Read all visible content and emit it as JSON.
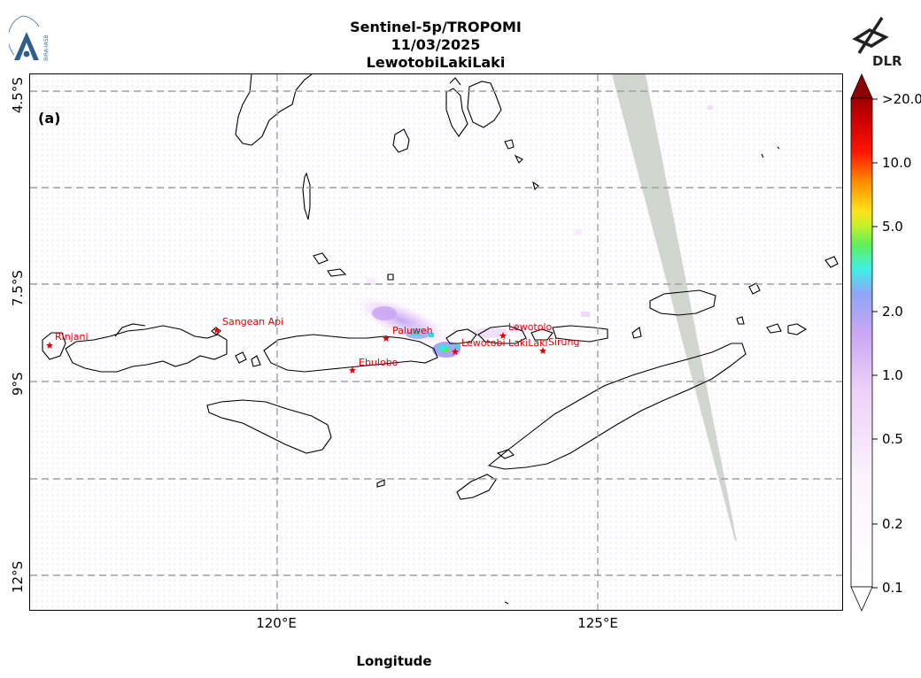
{
  "header": {
    "title_line1": "Sentinel-5p/TROPOMI",
    "title_line2": "11/03/2025",
    "title_line3": "LewotobiLakiLaki"
  },
  "logos": {
    "left_logo_icon": "bira-iasb-logo",
    "left_logo_text": "BIRA-IASB",
    "right_logo_icon": "dlr-logo",
    "right_logo_text": "DLR"
  },
  "map": {
    "panel_label": "(a)",
    "x_axis_label": "Longitude",
    "lon_ticks": [
      "120°E",
      "125°E"
    ],
    "lat_ticks": [
      "4.5°S",
      "7.5°S",
      "9°S",
      "12°S"
    ],
    "grid": true,
    "extent": {
      "lon": [
        116.2,
        128.8
      ],
      "lat": [
        -4.25,
        -12.55
      ]
    },
    "volcanoes": [
      {
        "name": "Rinjani",
        "lon": 116.5,
        "lat": -8.4
      },
      {
        "name": "Sangean Api",
        "lon": 119.1,
        "lat": -8.2
      },
      {
        "name": "Paluweh",
        "lon": 121.7,
        "lat": -8.3
      },
      {
        "name": "Ebulobo",
        "lon": 121.2,
        "lat": -8.8
      },
      {
        "name": "Lewotolo",
        "lon": 123.5,
        "lat": -8.3
      },
      {
        "name": "Lewotobi LakiLaki",
        "lon": 122.8,
        "lat": -8.5
      },
      {
        "name": "Sirung",
        "lon": 124.1,
        "lat": -8.5
      }
    ],
    "colors": {
      "coastline": "#000000",
      "volcano_marker": "#e60000",
      "missing_data_swath": "#c9d0c7",
      "grid": "#a0a0a0"
    }
  },
  "colorbar": {
    "scale": "log",
    "min": 0.1,
    "max": 20.0,
    "extend": "both",
    "tick_labels": [
      ">20.0",
      "10.0",
      "5.0",
      "2.0",
      "1.0",
      "0.5",
      "0.2",
      "0.1"
    ],
    "tick_values": [
      20.0,
      10.0,
      5.0,
      2.0,
      1.0,
      0.5,
      0.2,
      0.1
    ],
    "colors": [
      "#ffffff",
      "#f6dcf8",
      "#dab6f5",
      "#9aa3f7",
      "#3ef0e6",
      "#4cf04a",
      "#ffe21a",
      "#ff8a00",
      "#ff1400",
      "#c80000",
      "#8b0000"
    ]
  }
}
